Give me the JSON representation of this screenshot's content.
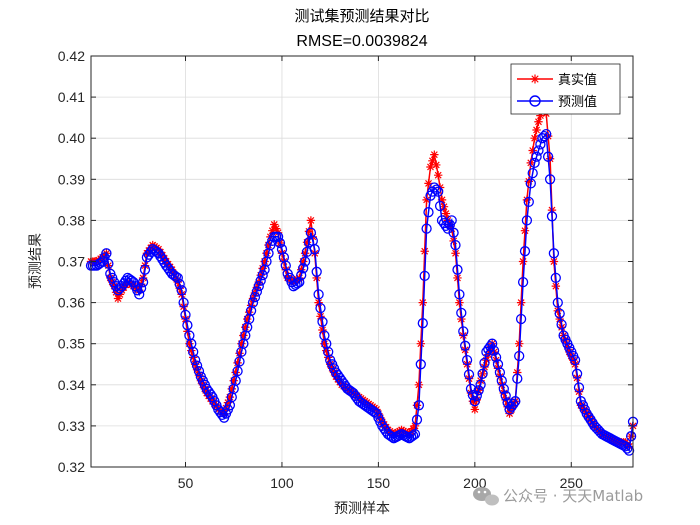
{
  "chart_data": {
    "type": "line",
    "title": "测试集预测结果对比",
    "subtitle": "RMSE=0.0039824",
    "xlabel": "预测样本",
    "ylabel": "预测结果",
    "xlim": [
      1,
      282
    ],
    "ylim": [
      0.32,
      0.42
    ],
    "xticks": [
      50,
      100,
      150,
      200,
      250
    ],
    "yticks": [
      0.32,
      0.33,
      0.34,
      0.35,
      0.36,
      0.37,
      0.38,
      0.39,
      0.4,
      0.41,
      0.42
    ],
    "grid": true,
    "legend_position": "top-right",
    "series": [
      {
        "name": "真实值",
        "color": "#ff0000",
        "marker": "asterisk",
        "anchors": [
          [
            1,
            0.37
          ],
          [
            4,
            0.37
          ],
          [
            7,
            0.371
          ],
          [
            9,
            0.372
          ],
          [
            11,
            0.366
          ],
          [
            13,
            0.364
          ],
          [
            15,
            0.361
          ],
          [
            17,
            0.363
          ],
          [
            20,
            0.365
          ],
          [
            23,
            0.364
          ],
          [
            26,
            0.363
          ],
          [
            28,
            0.366
          ],
          [
            30,
            0.372
          ],
          [
            33,
            0.374
          ],
          [
            36,
            0.373
          ],
          [
            40,
            0.37
          ],
          [
            43,
            0.368
          ],
          [
            46,
            0.365
          ],
          [
            48,
            0.362
          ],
          [
            50,
            0.356
          ],
          [
            52,
            0.35
          ],
          [
            55,
            0.345
          ],
          [
            58,
            0.341
          ],
          [
            61,
            0.338
          ],
          [
            64,
            0.336
          ],
          [
            67,
            0.334
          ],
          [
            70,
            0.333
          ],
          [
            73,
            0.337
          ],
          [
            76,
            0.343
          ],
          [
            79,
            0.35
          ],
          [
            82,
            0.356
          ],
          [
            85,
            0.361
          ],
          [
            88,
            0.365
          ],
          [
            91,
            0.37
          ],
          [
            94,
            0.376
          ],
          [
            96,
            0.379
          ],
          [
            98,
            0.377
          ],
          [
            100,
            0.372
          ],
          [
            103,
            0.366
          ],
          [
            106,
            0.365
          ],
          [
            109,
            0.366
          ],
          [
            112,
            0.372
          ],
          [
            115,
            0.38
          ],
          [
            117,
            0.372
          ],
          [
            119,
            0.36
          ],
          [
            122,
            0.35
          ],
          [
            125,
            0.345
          ],
          [
            128,
            0.342
          ],
          [
            131,
            0.34
          ],
          [
            134,
            0.339
          ],
          [
            137,
            0.338
          ],
          [
            140,
            0.337
          ],
          [
            143,
            0.336
          ],
          [
            146,
            0.335
          ],
          [
            149,
            0.334
          ],
          [
            152,
            0.331
          ],
          [
            155,
            0.329
          ],
          [
            158,
            0.328
          ],
          [
            162,
            0.329
          ],
          [
            166,
            0.328
          ],
          [
            169,
            0.33
          ],
          [
            171,
            0.34
          ],
          [
            173,
            0.36
          ],
          [
            175,
            0.385
          ],
          [
            177,
            0.393
          ],
          [
            179,
            0.396
          ],
          [
            181,
            0.391
          ],
          [
            183,
            0.385
          ],
          [
            186,
            0.38
          ],
          [
            188,
            0.378
          ],
          [
            190,
            0.372
          ],
          [
            192,
            0.36
          ],
          [
            194,
            0.352
          ],
          [
            196,
            0.345
          ],
          [
            198,
            0.338
          ],
          [
            200,
            0.334
          ],
          [
            203,
            0.341
          ],
          [
            206,
            0.346
          ],
          [
            209,
            0.35
          ],
          [
            212,
            0.344
          ],
          [
            215,
            0.338
          ],
          [
            218,
            0.333
          ],
          [
            221,
            0.336
          ],
          [
            223,
            0.35
          ],
          [
            225,
            0.37
          ],
          [
            227,
            0.385
          ],
          [
            229,
            0.394
          ],
          [
            231,
            0.4
          ],
          [
            233,
            0.404
          ],
          [
            235,
            0.407
          ],
          [
            237,
            0.406
          ],
          [
            239,
            0.395
          ],
          [
            241,
            0.37
          ],
          [
            243,
            0.358
          ],
          [
            246,
            0.352
          ],
          [
            249,
            0.348
          ],
          [
            252,
            0.345
          ],
          [
            255,
            0.335
          ],
          [
            258,
            0.333
          ],
          [
            262,
            0.33
          ],
          [
            266,
            0.328
          ],
          [
            270,
            0.327
          ],
          [
            274,
            0.326
          ],
          [
            278,
            0.326
          ],
          [
            280,
            0.325
          ],
          [
            282,
            0.33
          ]
        ]
      },
      {
        "name": "预测值",
        "color": "#0000ff",
        "marker": "circle",
        "anchors": [
          [
            1,
            0.369
          ],
          [
            4,
            0.369
          ],
          [
            7,
            0.37
          ],
          [
            9,
            0.372
          ],
          [
            11,
            0.367
          ],
          [
            13,
            0.365
          ],
          [
            15,
            0.363
          ],
          [
            17,
            0.364
          ],
          [
            20,
            0.366
          ],
          [
            23,
            0.365
          ],
          [
            26,
            0.362
          ],
          [
            28,
            0.365
          ],
          [
            30,
            0.371
          ],
          [
            33,
            0.373
          ],
          [
            36,
            0.372
          ],
          [
            40,
            0.369
          ],
          [
            43,
            0.367
          ],
          [
            46,
            0.366
          ],
          [
            48,
            0.363
          ],
          [
            50,
            0.357
          ],
          [
            52,
            0.352
          ],
          [
            55,
            0.346
          ],
          [
            58,
            0.342
          ],
          [
            61,
            0.339
          ],
          [
            64,
            0.337
          ],
          [
            67,
            0.334
          ],
          [
            70,
            0.332
          ],
          [
            73,
            0.335
          ],
          [
            76,
            0.341
          ],
          [
            79,
            0.348
          ],
          [
            82,
            0.354
          ],
          [
            85,
            0.36
          ],
          [
            88,
            0.364
          ],
          [
            91,
            0.368
          ],
          [
            94,
            0.374
          ],
          [
            96,
            0.376
          ],
          [
            98,
            0.376
          ],
          [
            100,
            0.373
          ],
          [
            103,
            0.367
          ],
          [
            106,
            0.364
          ],
          [
            109,
            0.365
          ],
          [
            112,
            0.37
          ],
          [
            115,
            0.377
          ],
          [
            117,
            0.373
          ],
          [
            119,
            0.362
          ],
          [
            122,
            0.352
          ],
          [
            125,
            0.346
          ],
          [
            128,
            0.343
          ],
          [
            131,
            0.341
          ],
          [
            134,
            0.339
          ],
          [
            137,
            0.338
          ],
          [
            140,
            0.336
          ],
          [
            143,
            0.335
          ],
          [
            146,
            0.334
          ],
          [
            149,
            0.333
          ],
          [
            152,
            0.33
          ],
          [
            155,
            0.328
          ],
          [
            158,
            0.327
          ],
          [
            162,
            0.328
          ],
          [
            166,
            0.327
          ],
          [
            169,
            0.328
          ],
          [
            171,
            0.335
          ],
          [
            173,
            0.355
          ],
          [
            175,
            0.378
          ],
          [
            177,
            0.386
          ],
          [
            179,
            0.388
          ],
          [
            181,
            0.387
          ],
          [
            183,
            0.38
          ],
          [
            186,
            0.378
          ],
          [
            188,
            0.38
          ],
          [
            190,
            0.374
          ],
          [
            192,
            0.362
          ],
          [
            194,
            0.353
          ],
          [
            196,
            0.346
          ],
          [
            198,
            0.339
          ],
          [
            200,
            0.336
          ],
          [
            203,
            0.34
          ],
          [
            206,
            0.348
          ],
          [
            209,
            0.35
          ],
          [
            212,
            0.345
          ],
          [
            215,
            0.339
          ],
          [
            218,
            0.334
          ],
          [
            221,
            0.336
          ],
          [
            223,
            0.347
          ],
          [
            225,
            0.365
          ],
          [
            227,
            0.38
          ],
          [
            229,
            0.389
          ],
          [
            231,
            0.394
          ],
          [
            233,
            0.397
          ],
          [
            235,
            0.4
          ],
          [
            237,
            0.401
          ],
          [
            239,
            0.39
          ],
          [
            241,
            0.372
          ],
          [
            243,
            0.36
          ],
          [
            246,
            0.352
          ],
          [
            249,
            0.349
          ],
          [
            252,
            0.346
          ],
          [
            255,
            0.336
          ],
          [
            258,
            0.333
          ],
          [
            262,
            0.33
          ],
          [
            266,
            0.328
          ],
          [
            270,
            0.327
          ],
          [
            274,
            0.326
          ],
          [
            278,
            0.325
          ],
          [
            280,
            0.324
          ],
          [
            282,
            0.331
          ]
        ]
      }
    ]
  },
  "watermark": {
    "text": "公众号 · 天天Matlab",
    "icon": "wechat-icon"
  }
}
